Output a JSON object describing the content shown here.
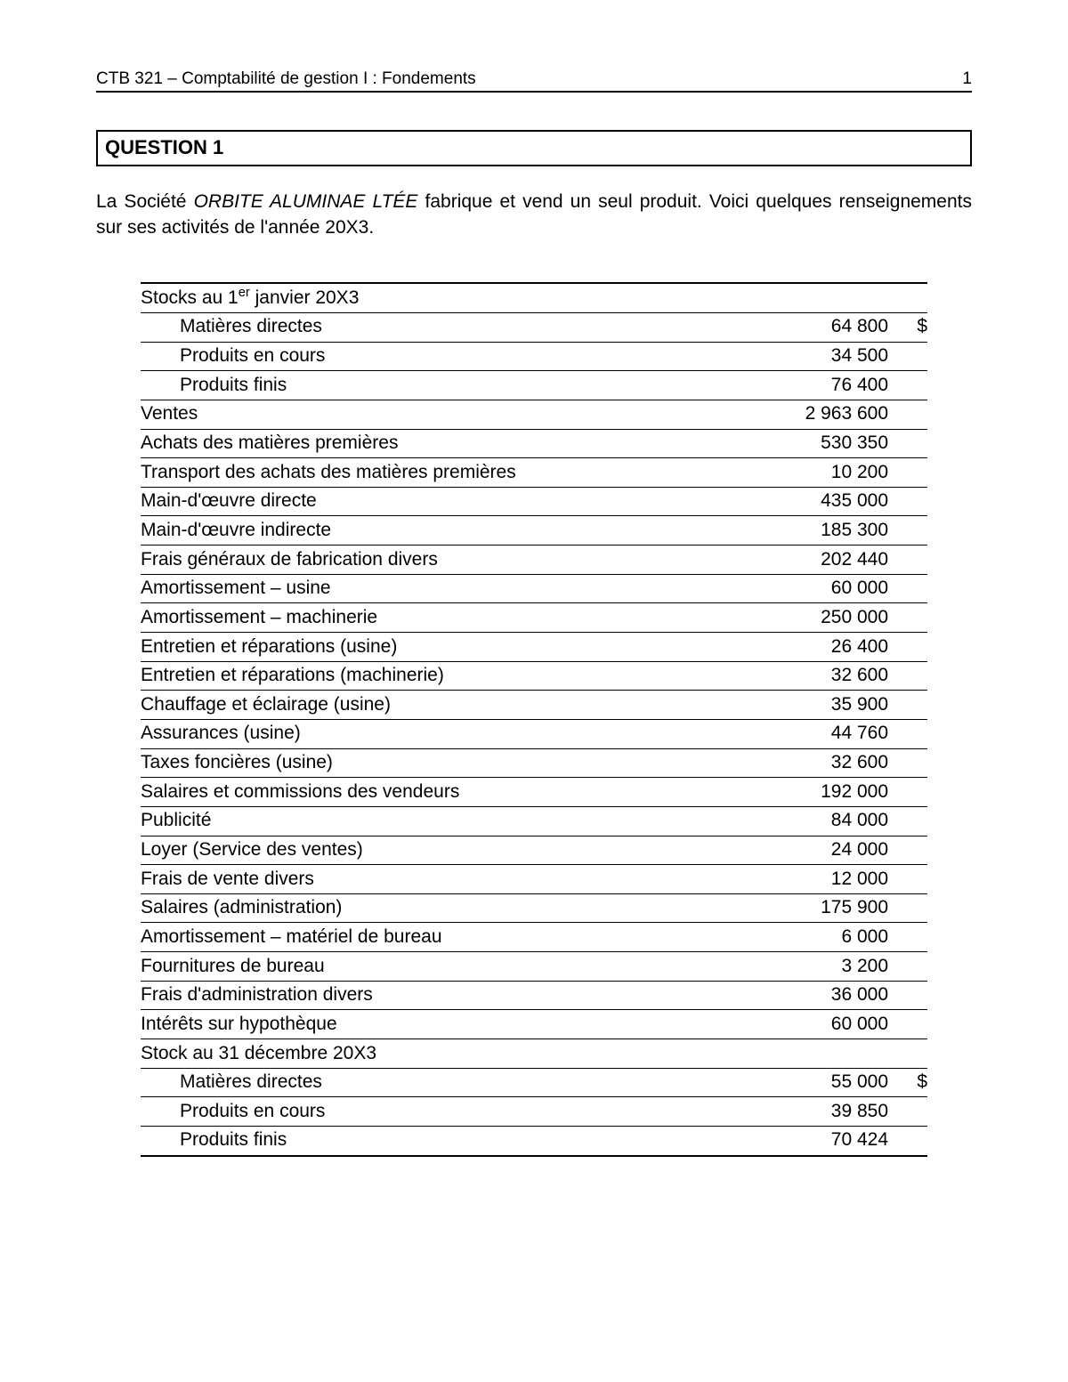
{
  "header": {
    "left": "CTB 321 – Comptabilité de gestion I : Fondements",
    "page_number": "1"
  },
  "question_title": "QUESTION 1",
  "intro": {
    "pre": "La Société ",
    "company": "ORBITE ALUMINAE LTÉE",
    "post": " fabrique et vend un seul produit. Voici quelques renseignements sur ses activités de l'année 20X3."
  },
  "table": {
    "currency_symbol": "$",
    "colors": {
      "rule": "#000000",
      "text": "#000000",
      "background": "#ffffff"
    },
    "rows": [
      {
        "label_html": "Stocks au 1<sup>er</sup> janvier 20X3",
        "value": "",
        "symbol": "",
        "indent": false,
        "section_header": true
      },
      {
        "label": "Matières directes",
        "value": "64 800",
        "symbol": "$",
        "indent": true
      },
      {
        "label": "Produits en cours",
        "value": "34 500",
        "symbol": "",
        "indent": true
      },
      {
        "label": "Produits finis",
        "value": "76 400",
        "symbol": "",
        "indent": true
      },
      {
        "label": "Ventes",
        "value": "2 963 600",
        "symbol": "",
        "indent": false
      },
      {
        "label": "Achats des matières premières",
        "value": "530 350",
        "symbol": "",
        "indent": false
      },
      {
        "label": "Transport des achats des matières premières",
        "value": "10 200",
        "symbol": "",
        "indent": false
      },
      {
        "label": "Main-d'œuvre directe",
        "value": "435 000",
        "symbol": "",
        "indent": false
      },
      {
        "label": "Main-d'œuvre indirecte",
        "value": "185 300",
        "symbol": "",
        "indent": false
      },
      {
        "label": "Frais généraux de fabrication divers",
        "value": "202 440",
        "symbol": "",
        "indent": false
      },
      {
        "label": "Amortissement – usine",
        "value": "60 000",
        "symbol": "",
        "indent": false
      },
      {
        "label": "Amortissement – machinerie",
        "value": "250 000",
        "symbol": "",
        "indent": false
      },
      {
        "label": "Entretien et réparations (usine)",
        "value": "26 400",
        "symbol": "",
        "indent": false
      },
      {
        "label": "Entretien et réparations (machinerie)",
        "value": "32 600",
        "symbol": "",
        "indent": false
      },
      {
        "label": "Chauffage et éclairage (usine)",
        "value": "35 900",
        "symbol": "",
        "indent": false
      },
      {
        "label": "Assurances (usine)",
        "value": "44 760",
        "symbol": "",
        "indent": false
      },
      {
        "label": "Taxes foncières (usine)",
        "value": "32 600",
        "symbol": "",
        "indent": false
      },
      {
        "label": "Salaires et commissions des vendeurs",
        "value": "192 000",
        "symbol": "",
        "indent": false
      },
      {
        "label": "Publicité",
        "value": "84 000",
        "symbol": "",
        "indent": false
      },
      {
        "label": "Loyer (Service des ventes)",
        "value": "24 000",
        "symbol": "",
        "indent": false
      },
      {
        "label": "Frais de vente divers",
        "value": "12 000",
        "symbol": "",
        "indent": false
      },
      {
        "label": "Salaires (administration)",
        "value": "175 900",
        "symbol": "",
        "indent": false
      },
      {
        "label": "Amortissement – matériel de bureau",
        "value": "6 000",
        "symbol": "",
        "indent": false
      },
      {
        "label": "Fournitures de bureau",
        "value": "3 200",
        "symbol": "",
        "indent": false
      },
      {
        "label": "Frais d'administration divers",
        "value": "36 000",
        "symbol": "",
        "indent": false
      },
      {
        "label": "Intérêts sur hypothèque",
        "value": "60 000",
        "symbol": "",
        "indent": false
      },
      {
        "label": "Stock au 31 décembre 20X3",
        "value": "",
        "symbol": "",
        "indent": false,
        "section_header": true
      },
      {
        "label": "Matières directes",
        "value": "55 000",
        "symbol": "$",
        "indent": true
      },
      {
        "label": "Produits en cours",
        "value": "39 850",
        "symbol": "",
        "indent": true
      },
      {
        "label": "Produits finis",
        "value": "70 424",
        "symbol": "",
        "indent": true
      }
    ]
  }
}
